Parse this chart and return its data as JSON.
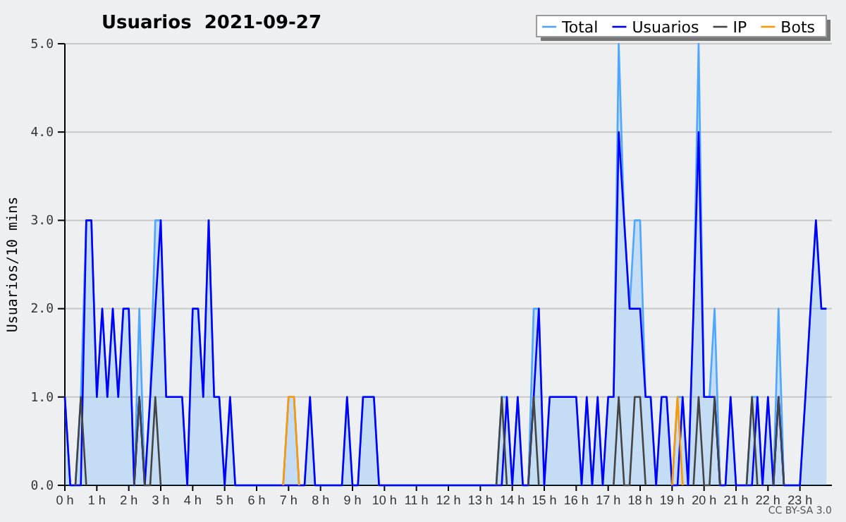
{
  "chart_data": {
    "type": "line",
    "title": "Usuarios  2021-09-27",
    "ylabel": "Usuarios/10 mins",
    "annotations": [
      "CC BY-SA 3.0"
    ],
    "x": [
      0,
      0.17,
      0.33,
      0.5,
      0.67,
      0.83,
      1,
      1.17,
      1.33,
      1.5,
      1.67,
      1.83,
      2,
      2.17,
      2.33,
      2.5,
      2.67,
      2.83,
      3,
      3.17,
      3.33,
      3.5,
      3.67,
      3.83,
      4,
      4.17,
      4.33,
      4.5,
      4.67,
      4.83,
      5,
      5.17,
      5.33,
      5.5,
      5.67,
      5.83,
      6,
      6.17,
      6.33,
      6.5,
      6.67,
      6.83,
      7,
      7.17,
      7.33,
      7.5,
      7.67,
      7.83,
      8,
      8.17,
      8.33,
      8.5,
      8.67,
      8.83,
      9,
      9.17,
      9.33,
      9.5,
      9.67,
      9.83,
      10,
      10.17,
      10.33,
      10.5,
      10.67,
      10.83,
      11,
      11.17,
      11.33,
      11.5,
      11.67,
      11.83,
      12,
      12.17,
      12.33,
      12.5,
      12.67,
      12.83,
      13,
      13.17,
      13.33,
      13.5,
      13.67,
      13.83,
      14,
      14.17,
      14.33,
      14.5,
      14.67,
      14.83,
      15,
      15.17,
      15.33,
      15.5,
      15.67,
      15.83,
      16,
      16.17,
      16.33,
      16.5,
      16.67,
      16.83,
      17,
      17.17,
      17.33,
      17.5,
      17.67,
      17.83,
      18,
      18.17,
      18.33,
      18.5,
      18.67,
      18.83,
      19,
      19.17,
      19.33,
      19.5,
      19.67,
      19.83,
      20,
      20.17,
      20.33,
      20.5,
      20.67,
      20.83,
      21,
      21.17,
      21.33,
      21.5,
      21.67,
      21.83,
      22,
      22.17,
      22.33,
      22.5,
      22.67,
      22.83,
      23,
      23.17,
      23.33,
      23.5,
      23.67,
      23.83
    ],
    "series": [
      {
        "name": "Total",
        "type": "area",
        "color": "#4da6ff",
        "values": [
          1,
          0,
          0,
          1,
          3,
          3,
          1,
          2,
          1,
          2,
          1,
          2,
          2,
          0,
          2,
          0,
          1,
          3,
          3,
          1,
          1,
          1,
          1,
          0,
          2,
          2,
          1,
          3,
          1,
          1,
          0,
          1,
          0,
          0,
          0,
          0,
          0,
          0,
          0,
          0,
          0,
          0,
          1,
          1,
          0,
          0,
          1,
          0,
          0,
          0,
          0,
          0,
          0,
          1,
          0,
          0,
          1,
          1,
          1,
          0,
          0,
          0,
          0,
          0,
          0,
          0,
          0,
          0,
          0,
          0,
          0,
          0,
          0,
          0,
          0,
          0,
          0,
          0,
          0,
          0,
          0,
          0,
          1,
          1,
          0,
          1,
          0,
          0,
          2,
          2,
          0,
          1,
          1,
          1,
          1,
          1,
          1,
          0,
          1,
          0,
          1,
          0,
          1,
          1,
          5,
          3,
          2,
          3,
          3,
          1,
          1,
          0,
          1,
          1,
          0,
          1,
          1,
          0,
          2,
          5,
          1,
          1,
          2,
          0,
          0,
          1,
          0,
          0,
          0,
          1,
          1,
          0,
          1,
          0,
          2,
          0,
          0,
          0,
          0,
          1,
          2,
          3,
          2,
          2
        ]
      },
      {
        "name": "Usuarios",
        "color": "#0000ff",
        "values": [
          1,
          0,
          0,
          0,
          3,
          3,
          1,
          2,
          1,
          2,
          1,
          2,
          2,
          0,
          1,
          0,
          1,
          2,
          3,
          1,
          1,
          1,
          1,
          0,
          2,
          2,
          1,
          3,
          1,
          1,
          0,
          1,
          0,
          0,
          0,
          0,
          0,
          0,
          0,
          0,
          0,
          0,
          0,
          0,
          0,
          0,
          1,
          0,
          0,
          0,
          0,
          0,
          0,
          1,
          0,
          0,
          1,
          1,
          1,
          0,
          0,
          0,
          0,
          0,
          0,
          0,
          0,
          0,
          0,
          0,
          0,
          0,
          0,
          0,
          0,
          0,
          0,
          0,
          0,
          0,
          0,
          0,
          0,
          1,
          0,
          1,
          0,
          0,
          1,
          2,
          0,
          1,
          1,
          1,
          1,
          1,
          1,
          0,
          1,
          0,
          1,
          0,
          1,
          1,
          4,
          3,
          2,
          2,
          2,
          1,
          1,
          0,
          1,
          1,
          0,
          0,
          1,
          0,
          2,
          4,
          1,
          1,
          1,
          0,
          0,
          1,
          0,
          0,
          0,
          0,
          1,
          0,
          1,
          0,
          1,
          0,
          0,
          0,
          0,
          1,
          2,
          3,
          2,
          2
        ]
      },
      {
        "name": "IP",
        "color": "#444444",
        "values": [
          null,
          null,
          0,
          1,
          0,
          null,
          null,
          null,
          null,
          null,
          null,
          null,
          null,
          0,
          1,
          0,
          0,
          1,
          0,
          null,
          null,
          null,
          null,
          null,
          null,
          null,
          null,
          null,
          null,
          null,
          null,
          null,
          null,
          null,
          null,
          null,
          null,
          null,
          null,
          null,
          null,
          null,
          null,
          null,
          null,
          null,
          null,
          null,
          null,
          null,
          null,
          null,
          null,
          null,
          null,
          null,
          null,
          null,
          null,
          null,
          null,
          null,
          null,
          null,
          null,
          null,
          null,
          null,
          null,
          null,
          null,
          null,
          null,
          null,
          null,
          null,
          null,
          null,
          null,
          null,
          null,
          0,
          1,
          0,
          null,
          null,
          null,
          0,
          1,
          0,
          null,
          null,
          null,
          null,
          null,
          null,
          null,
          null,
          null,
          null,
          null,
          null,
          null,
          0,
          1,
          0,
          0,
          1,
          1,
          0,
          null,
          null,
          null,
          null,
          null,
          null,
          null,
          null,
          0,
          1,
          0,
          0,
          1,
          0,
          null,
          null,
          null,
          null,
          0,
          1,
          0,
          null,
          null,
          0,
          1,
          0,
          null,
          null,
          null,
          null,
          null,
          null,
          null,
          null
        ]
      },
      {
        "name": "Bots",
        "color": "#ff9900",
        "values": [
          null,
          null,
          null,
          null,
          null,
          null,
          null,
          null,
          null,
          null,
          null,
          null,
          null,
          null,
          null,
          null,
          null,
          null,
          null,
          null,
          null,
          null,
          null,
          null,
          null,
          null,
          null,
          null,
          null,
          null,
          null,
          null,
          null,
          null,
          null,
          null,
          null,
          null,
          null,
          null,
          null,
          0,
          1,
          1,
          0,
          null,
          null,
          null,
          null,
          null,
          null,
          null,
          null,
          null,
          null,
          null,
          null,
          null,
          null,
          null,
          null,
          null,
          null,
          null,
          null,
          null,
          null,
          null,
          null,
          null,
          null,
          null,
          null,
          null,
          null,
          null,
          null,
          null,
          null,
          null,
          null,
          null,
          null,
          null,
          null,
          null,
          null,
          null,
          null,
          null,
          null,
          null,
          null,
          null,
          null,
          null,
          null,
          null,
          null,
          null,
          null,
          null,
          null,
          null,
          null,
          null,
          null,
          null,
          null,
          null,
          null,
          null,
          null,
          null,
          0,
          1,
          0,
          null,
          null,
          null,
          null,
          null,
          null,
          null,
          null,
          null,
          null,
          null,
          null,
          null,
          null,
          null,
          null,
          null,
          null,
          null,
          null,
          null,
          null,
          null,
          null,
          null,
          null,
          null
        ]
      }
    ],
    "xlim": [
      0,
      24
    ],
    "xticks": [
      {
        "value": 0,
        "label": "0 h"
      },
      {
        "value": 1,
        "label": "1 h"
      },
      {
        "value": 2,
        "label": "2 h"
      },
      {
        "value": 3,
        "label": "3 h"
      },
      {
        "value": 4,
        "label": "4 h"
      },
      {
        "value": 5,
        "label": "5 h"
      },
      {
        "value": 6,
        "label": "6 h"
      },
      {
        "value": 7,
        "label": "7 h"
      },
      {
        "value": 8,
        "label": "8 h"
      },
      {
        "value": 9,
        "label": "9 h"
      },
      {
        "value": 10,
        "label": "10 h"
      },
      {
        "value": 11,
        "label": "11 h"
      },
      {
        "value": 12,
        "label": "12 h"
      },
      {
        "value": 13,
        "label": "13 h"
      },
      {
        "value": 14,
        "label": "14 h"
      },
      {
        "value": 15,
        "label": "15 h"
      },
      {
        "value": 16,
        "label": "16 h"
      },
      {
        "value": 17,
        "label": "17 h"
      },
      {
        "value": 18,
        "label": "18 h"
      },
      {
        "value": 19,
        "label": "19 h"
      },
      {
        "value": 20,
        "label": "20 h"
      },
      {
        "value": 21,
        "label": "21 h"
      },
      {
        "value": 22,
        "label": "22 h"
      },
      {
        "value": 23,
        "label": "23 h"
      }
    ],
    "ylim": [
      0,
      5
    ],
    "yticks": [
      {
        "value": 0,
        "label": "0.0"
      },
      {
        "value": 1,
        "label": "1.0"
      },
      {
        "value": 2,
        "label": "2.0"
      },
      {
        "value": 3,
        "label": "3.0"
      },
      {
        "value": 4,
        "label": "4.0"
      },
      {
        "value": 5,
        "label": "5.0"
      }
    ],
    "grid": "y",
    "legend": "top right",
    "marker": "none",
    "line_style": "solid"
  }
}
